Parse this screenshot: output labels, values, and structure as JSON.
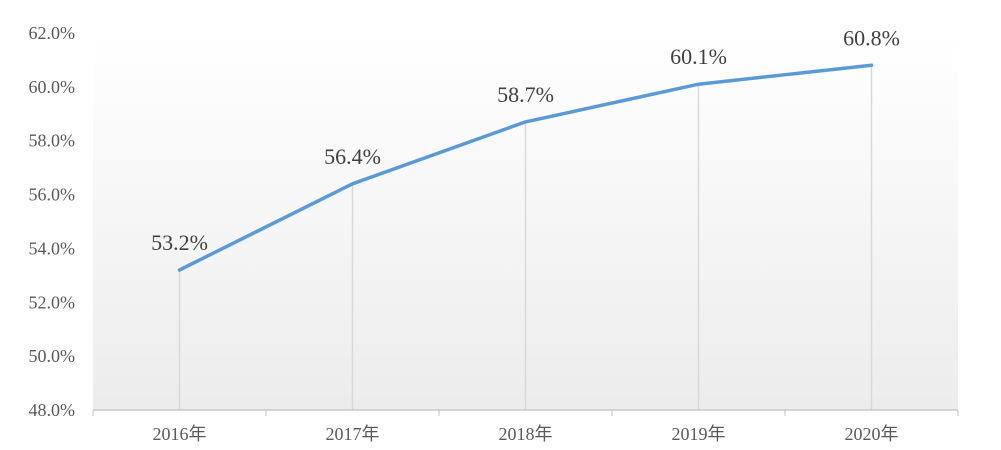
{
  "chart_data": {
    "type": "line",
    "categories": [
      "2016年",
      "2017年",
      "2018年",
      "2019年",
      "2020年"
    ],
    "series": [
      {
        "values": [
          53.2,
          56.4,
          58.7,
          60.1,
          60.8
        ]
      }
    ],
    "data_labels": [
      "53.2%",
      "56.4%",
      "58.7%",
      "60.1%",
      "60.8%"
    ],
    "yticks": [
      48.0,
      50.0,
      52.0,
      54.0,
      56.0,
      58.0,
      60.0,
      62.0
    ],
    "ytick_labels": [
      "48.0%",
      "50.0%",
      "52.0%",
      "54.0%",
      "56.0%",
      "58.0%",
      "60.0%",
      "62.0%"
    ],
    "ylim": [
      48,
      62
    ],
    "title": "",
    "xlabel": "",
    "ylabel": "",
    "grid": false,
    "drop_lines": true,
    "line_color": "#5B9BD5",
    "drop_line_color": "#D9D9D9",
    "axis_color": "#BFBFBF"
  }
}
